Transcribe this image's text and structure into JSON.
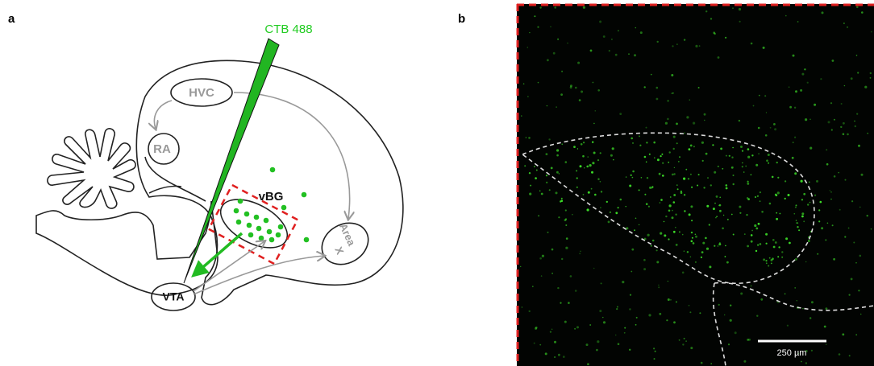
{
  "panel_a": {
    "label": "a",
    "probe_label": "CTB 488",
    "regions": {
      "hvc": "HVC",
      "ra": "RA",
      "vbg": "vBG",
      "area_x": [
        "Area",
        "X"
      ],
      "vta": "VTA"
    }
  },
  "panel_b": {
    "label": "b",
    "scale_bar_label": "250 µm"
  }
}
